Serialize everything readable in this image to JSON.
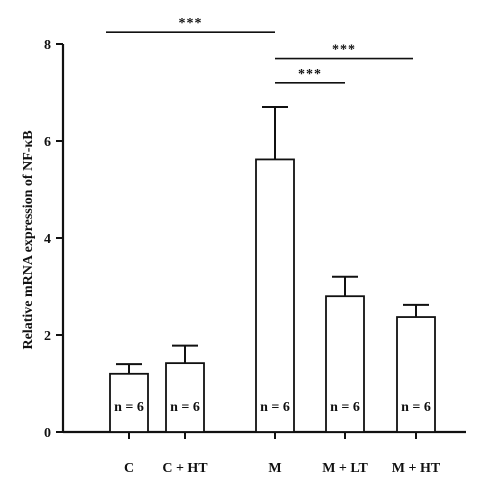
{
  "chart_data": {
    "type": "bar",
    "ylabel": "Relative mRNA expression of NF-κB",
    "ylim": [
      0,
      8
    ],
    "yticks": [
      0,
      2,
      4,
      6,
      8
    ],
    "categories": [
      "C",
      "C + HT",
      "M",
      "M + LT",
      "M + HT"
    ],
    "values": [
      1.2,
      1.42,
      5.62,
      2.8,
      2.37
    ],
    "error_upper": [
      1.4,
      1.78,
      6.7,
      3.2,
      2.62
    ],
    "annotations": [
      "n = 6",
      "n = 6",
      "n = 6",
      "n = 6",
      "n = 6"
    ],
    "significance": [
      {
        "from": "C",
        "to": "M",
        "label": "***",
        "y": 8.1
      },
      {
        "from": "M",
        "to": "M + HT",
        "label": "***",
        "y": 7.7
      },
      {
        "from": "M",
        "to": "M + LT",
        "label": "***",
        "y": 7.2
      }
    ],
    "colors": {
      "bar_fill": "#ffffff",
      "stroke": "#111111"
    }
  }
}
